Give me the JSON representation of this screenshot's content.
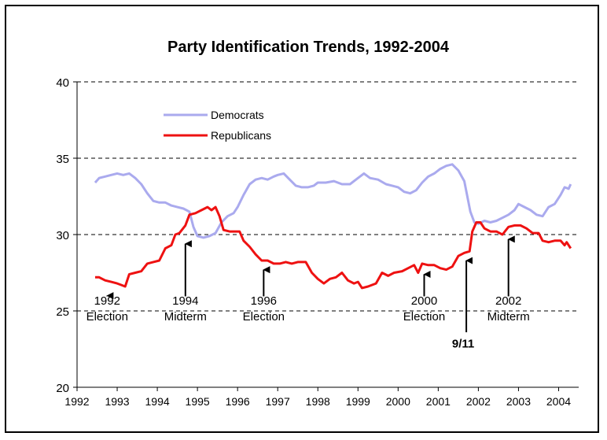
{
  "chart_data": {
    "type": "line",
    "title": "Party Identification Trends, 1992-2004",
    "xlabel": "",
    "ylabel": "",
    "xlim": [
      1992,
      2004.5
    ],
    "ylim": [
      20,
      40
    ],
    "x_ticks": [
      "1992",
      "1993",
      "1994",
      "1995",
      "1996",
      "1997",
      "1998",
      "1999",
      "2000",
      "2001",
      "2002",
      "2003",
      "2004"
    ],
    "y_ticks": [
      "20",
      "25",
      "30",
      "35",
      "40"
    ],
    "grid": "horizontal-dashed",
    "legend": "upper-left",
    "series": [
      {
        "name": "Democrats",
        "color": "#aaaaee",
        "points": [
          [
            1992.45,
            33.4
          ],
          [
            1992.55,
            33.7
          ],
          [
            1992.7,
            33.8
          ],
          [
            1992.85,
            33.9
          ],
          [
            1993.0,
            34.0
          ],
          [
            1993.15,
            33.9
          ],
          [
            1993.3,
            34.0
          ],
          [
            1993.45,
            33.7
          ],
          [
            1993.6,
            33.3
          ],
          [
            1993.75,
            32.7
          ],
          [
            1993.9,
            32.2
          ],
          [
            1994.05,
            32.1
          ],
          [
            1994.2,
            32.1
          ],
          [
            1994.35,
            31.9
          ],
          [
            1994.5,
            31.8
          ],
          [
            1994.65,
            31.7
          ],
          [
            1994.8,
            31.5
          ],
          [
            1994.9,
            30.5
          ],
          [
            1995.0,
            29.9
          ],
          [
            1995.15,
            29.8
          ],
          [
            1995.3,
            29.9
          ],
          [
            1995.45,
            30.1
          ],
          [
            1995.6,
            30.8
          ],
          [
            1995.75,
            31.2
          ],
          [
            1995.9,
            31.4
          ],
          [
            1996.0,
            31.8
          ],
          [
            1996.15,
            32.6
          ],
          [
            1996.3,
            33.3
          ],
          [
            1996.45,
            33.6
          ],
          [
            1996.6,
            33.7
          ],
          [
            1996.75,
            33.6
          ],
          [
            1996.9,
            33.8
          ],
          [
            1997.0,
            33.9
          ],
          [
            1997.15,
            34.0
          ],
          [
            1997.3,
            33.6
          ],
          [
            1997.45,
            33.2
          ],
          [
            1997.6,
            33.1
          ],
          [
            1997.75,
            33.1
          ],
          [
            1997.9,
            33.2
          ],
          [
            1998.0,
            33.4
          ],
          [
            1998.2,
            33.4
          ],
          [
            1998.4,
            33.5
          ],
          [
            1998.6,
            33.3
          ],
          [
            1998.8,
            33.3
          ],
          [
            1999.0,
            33.7
          ],
          [
            1999.15,
            34.0
          ],
          [
            1999.3,
            33.7
          ],
          [
            1999.5,
            33.6
          ],
          [
            1999.7,
            33.3
          ],
          [
            1999.85,
            33.2
          ],
          [
            2000.0,
            33.1
          ],
          [
            2000.15,
            32.8
          ],
          [
            2000.3,
            32.7
          ],
          [
            2000.45,
            32.9
          ],
          [
            2000.6,
            33.4
          ],
          [
            2000.75,
            33.8
          ],
          [
            2000.9,
            34.0
          ],
          [
            2001.05,
            34.3
          ],
          [
            2001.2,
            34.5
          ],
          [
            2001.35,
            34.6
          ],
          [
            2001.5,
            34.2
          ],
          [
            2001.65,
            33.5
          ],
          [
            2001.8,
            31.5
          ],
          [
            2001.9,
            30.8
          ],
          [
            2002.0,
            30.7
          ],
          [
            2002.15,
            30.9
          ],
          [
            2002.3,
            30.8
          ],
          [
            2002.45,
            30.9
          ],
          [
            2002.6,
            31.1
          ],
          [
            2002.75,
            31.3
          ],
          [
            2002.9,
            31.6
          ],
          [
            2003.0,
            32.0
          ],
          [
            2003.15,
            31.8
          ],
          [
            2003.3,
            31.6
          ],
          [
            2003.45,
            31.3
          ],
          [
            2003.6,
            31.2
          ],
          [
            2003.75,
            31.8
          ],
          [
            2003.9,
            32.0
          ],
          [
            2004.05,
            32.6
          ],
          [
            2004.15,
            33.1
          ],
          [
            2004.25,
            33.0
          ],
          [
            2004.3,
            33.3
          ]
        ]
      },
      {
        "name": "Republicans",
        "color": "#ee1111",
        "points": [
          [
            1992.45,
            27.2
          ],
          [
            1992.55,
            27.2
          ],
          [
            1992.7,
            27.0
          ],
          [
            1992.85,
            26.9
          ],
          [
            1993.0,
            26.8
          ],
          [
            1993.1,
            26.7
          ],
          [
            1993.2,
            26.6
          ],
          [
            1993.3,
            27.4
          ],
          [
            1993.45,
            27.5
          ],
          [
            1993.6,
            27.6
          ],
          [
            1993.75,
            28.1
          ],
          [
            1993.9,
            28.2
          ],
          [
            1994.05,
            28.3
          ],
          [
            1994.2,
            29.1
          ],
          [
            1994.35,
            29.3
          ],
          [
            1994.45,
            30.0
          ],
          [
            1994.55,
            30.1
          ],
          [
            1994.7,
            30.6
          ],
          [
            1994.8,
            31.3
          ],
          [
            1994.95,
            31.4
          ],
          [
            1995.1,
            31.6
          ],
          [
            1995.25,
            31.8
          ],
          [
            1995.35,
            31.6
          ],
          [
            1995.45,
            31.8
          ],
          [
            1995.55,
            31.2
          ],
          [
            1995.65,
            30.3
          ],
          [
            1995.8,
            30.2
          ],
          [
            1995.95,
            30.2
          ],
          [
            1996.05,
            30.2
          ],
          [
            1996.15,
            29.6
          ],
          [
            1996.3,
            29.2
          ],
          [
            1996.45,
            28.7
          ],
          [
            1996.6,
            28.3
          ],
          [
            1996.75,
            28.3
          ],
          [
            1996.9,
            28.1
          ],
          [
            1997.05,
            28.1
          ],
          [
            1997.2,
            28.2
          ],
          [
            1997.35,
            28.1
          ],
          [
            1997.5,
            28.2
          ],
          [
            1997.7,
            28.2
          ],
          [
            1997.85,
            27.5
          ],
          [
            1998.0,
            27.1
          ],
          [
            1998.15,
            26.8
          ],
          [
            1998.3,
            27.1
          ],
          [
            1998.45,
            27.2
          ],
          [
            1998.6,
            27.5
          ],
          [
            1998.75,
            27.0
          ],
          [
            1998.9,
            26.8
          ],
          [
            1999.0,
            26.9
          ],
          [
            1999.1,
            26.5
          ],
          [
            1999.25,
            26.6
          ],
          [
            1999.45,
            26.8
          ],
          [
            1999.6,
            27.5
          ],
          [
            1999.75,
            27.3
          ],
          [
            1999.9,
            27.5
          ],
          [
            2000.1,
            27.6
          ],
          [
            2000.25,
            27.8
          ],
          [
            2000.4,
            28.0
          ],
          [
            2000.5,
            27.5
          ],
          [
            2000.6,
            28.1
          ],
          [
            2000.75,
            28.0
          ],
          [
            2000.9,
            28.0
          ],
          [
            2001.05,
            27.8
          ],
          [
            2001.2,
            27.7
          ],
          [
            2001.35,
            27.9
          ],
          [
            2001.5,
            28.6
          ],
          [
            2001.65,
            28.8
          ],
          [
            2001.78,
            28.9
          ],
          [
            2001.85,
            30.2
          ],
          [
            2001.95,
            30.8
          ],
          [
            2002.05,
            30.8
          ],
          [
            2002.15,
            30.4
          ],
          [
            2002.3,
            30.2
          ],
          [
            2002.45,
            30.2
          ],
          [
            2002.6,
            30.0
          ],
          [
            2002.75,
            30.5
          ],
          [
            2002.9,
            30.6
          ],
          [
            2003.05,
            30.6
          ],
          [
            2003.2,
            30.4
          ],
          [
            2003.35,
            30.1
          ],
          [
            2003.5,
            30.1
          ],
          [
            2003.6,
            29.6
          ],
          [
            2003.75,
            29.5
          ],
          [
            2003.9,
            29.6
          ],
          [
            2004.05,
            29.6
          ],
          [
            2004.15,
            29.3
          ],
          [
            2004.2,
            29.5
          ],
          [
            2004.3,
            29.1
          ]
        ]
      }
    ],
    "annotations": [
      {
        "lines": [
          "1992",
          "Election"
        ],
        "x": 1992.75,
        "y": 26.1,
        "bold": false
      },
      {
        "lines": [
          "1994",
          "Midterm"
        ],
        "x": 1994.7,
        "y": 29.5,
        "bold": false
      },
      {
        "lines": [
          "1996",
          "Election"
        ],
        "x": 1996.65,
        "y": 27.8,
        "bold": false
      },
      {
        "lines": [
          "2000",
          "Election"
        ],
        "x": 2000.65,
        "y": 27.5,
        "bold": false
      },
      {
        "lines": [
          "9/11"
        ],
        "x": 2001.7,
        "y": 28.4,
        "bold": true
      },
      {
        "lines": [
          "2002",
          "Midterm"
        ],
        "x": 2002.75,
        "y": 29.8,
        "bold": false
      }
    ]
  }
}
